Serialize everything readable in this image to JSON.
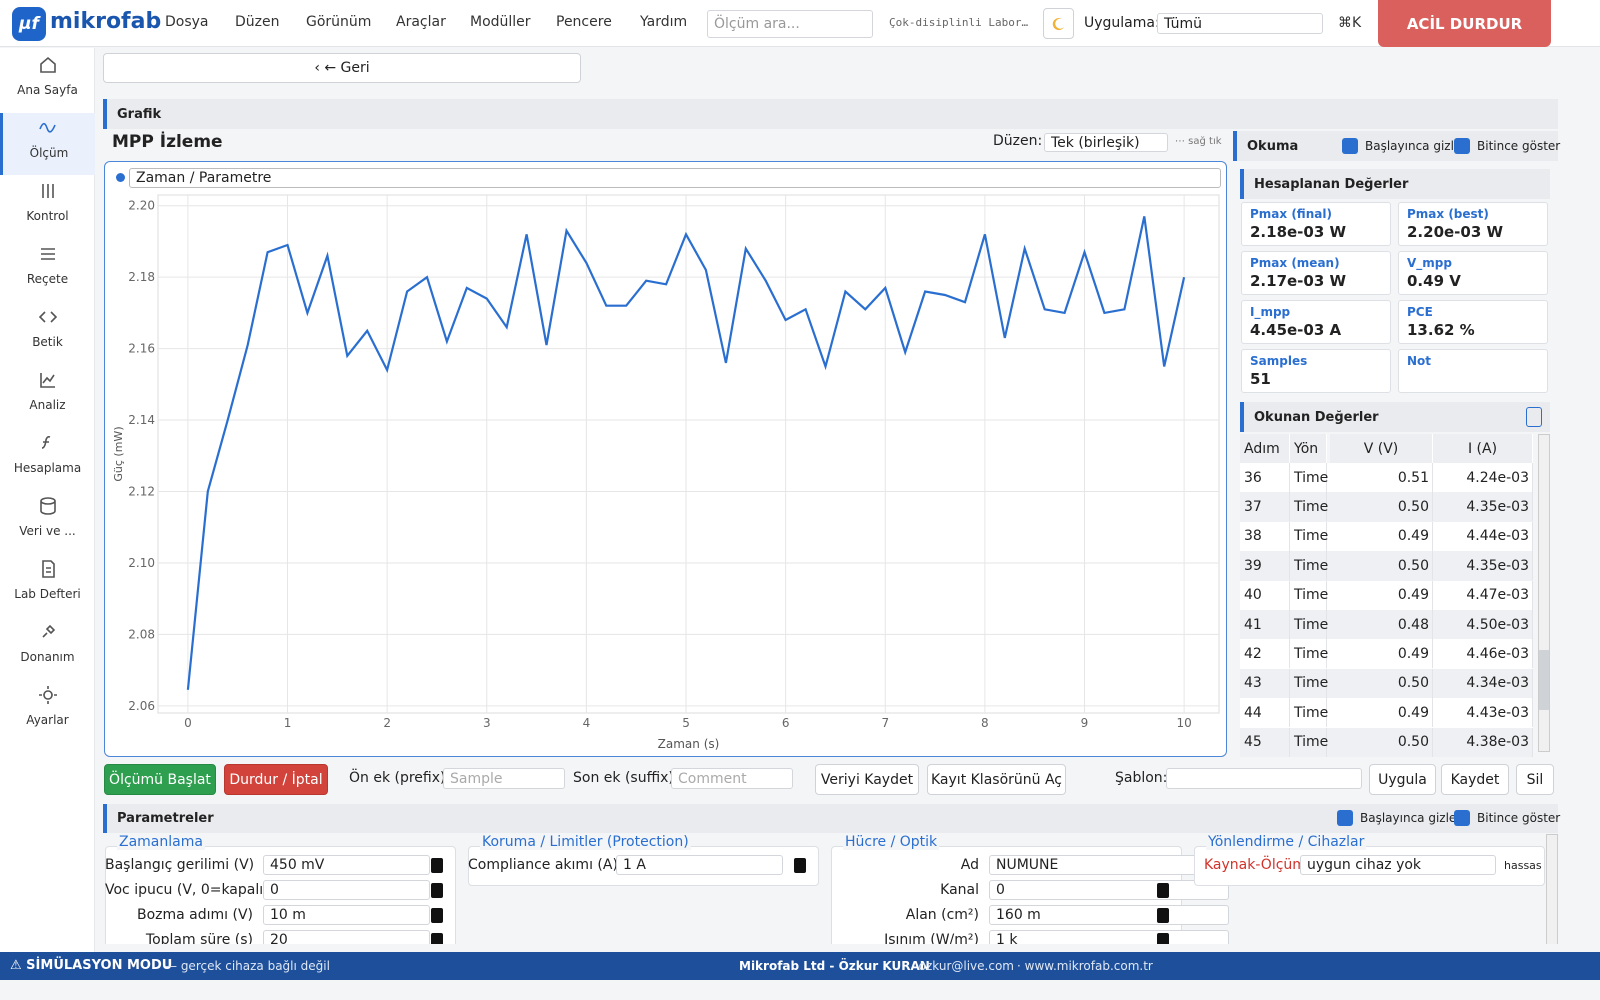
{
  "header": {
    "logo_badge": "µf",
    "logo_text": "mikrofab",
    "menu": [
      "Dosya",
      "Düzen",
      "Görünüm",
      "Araçlar",
      "Modüller",
      "Pencere",
      "Yardım"
    ],
    "search_placeholder": "Ölçüm ara...",
    "lab_name": "Çok-disiplinli Labor…",
    "app_label": "Uygulama:",
    "app_value": "Tümü",
    "shortcut": "⌘K",
    "emergency": "ACİL DURDUR"
  },
  "sidebar": {
    "items": [
      "Ana Sayfa",
      "Ölçüm",
      "Kontrol",
      "Reçete",
      "Betik",
      "Analiz",
      "Hesaplama",
      "Veri ve ...",
      "Lab Defteri",
      "Donanım",
      "Ayarlar"
    ],
    "active": 1
  },
  "back_button": "‹ ← Geri",
  "graph_section": "Grafik",
  "chart_data": {
    "type": "line",
    "title": "MPP İzleme",
    "layout_label": "Düzen:",
    "layout_value": "Tek (birleşik)",
    "hint": "⋯ sağ tık",
    "series_selector": "Zaman / Parametre",
    "x_label": "Zaman (s)",
    "y_label": "Güç (mW)",
    "x": [
      0,
      0.2,
      0.4,
      0.6,
      0.8,
      1.0,
      1.2,
      1.4,
      1.6,
      1.8,
      2.0,
      2.2,
      2.4,
      2.6,
      2.8,
      3.0,
      3.2,
      3.4,
      3.6,
      3.8,
      4.0,
      4.2,
      4.4,
      4.6,
      4.8,
      5.0,
      5.2,
      5.4,
      5.6,
      5.8,
      6.0,
      6.2,
      6.4,
      6.6,
      6.8,
      7.0,
      7.2,
      7.4,
      7.6,
      7.8,
      8.0,
      8.2,
      8.4,
      8.6,
      8.8,
      9.0,
      9.2,
      9.4,
      9.6,
      9.8,
      10.0
    ],
    "series": [
      {
        "color": "#2a6fd0",
        "values": [
          2.0645,
          2.12,
          2.14,
          2.161,
          2.187,
          2.189,
          2.17,
          2.186,
          2.158,
          2.165,
          2.154,
          2.176,
          2.18,
          2.162,
          2.177,
          2.174,
          2.166,
          2.192,
          2.161,
          2.193,
          2.184,
          2.172,
          2.172,
          2.179,
          2.178,
          2.192,
          2.182,
          2.156,
          2.188,
          2.179,
          2.168,
          2.171,
          2.155,
          2.176,
          2.171,
          2.177,
          2.159,
          2.176,
          2.175,
          2.173,
          2.192,
          2.163,
          2.188,
          2.171,
          2.17,
          2.187,
          2.17,
          2.171,
          2.197,
          2.155,
          2.18
        ]
      }
    ],
    "xlim": [
      -0.3,
      10.35
    ],
    "ylim": [
      2.058,
      2.203
    ],
    "xticks": [
      0,
      1,
      2,
      3,
      4,
      5,
      6,
      7,
      8,
      9,
      10
    ],
    "yticks": [
      {
        "value": 2.06,
        "label": "2.06"
      },
      {
        "value": 2.08,
        "label": "2.08"
      },
      {
        "value": 2.1,
        "label": "2.10"
      },
      {
        "value": 2.12,
        "label": "2.12"
      },
      {
        "value": 2.14,
        "label": "2.14"
      },
      {
        "value": 2.16,
        "label": "2.16"
      },
      {
        "value": 2.18,
        "label": "2.18"
      },
      {
        "value": 2.2,
        "label": "2.20"
      }
    ],
    "grid": true
  },
  "reading": {
    "title": "Okuma",
    "checks": [
      "Başlayınca gizle",
      "Bitince göster"
    ],
    "computed_title": "Hesaplanan Değerler",
    "cards": [
      {
        "label": "Pmax (final)",
        "value": "2.18e-03 W"
      },
      {
        "label": "Pmax (best)",
        "value": "2.20e-03 W"
      },
      {
        "label": "Pmax (mean)",
        "value": "2.17e-03 W"
      },
      {
        "label": "V_mpp",
        "value": "0.49 V"
      },
      {
        "label": "I_mpp",
        "value": "4.45e-03 A"
      },
      {
        "label": "PCE",
        "value": "13.62 %"
      },
      {
        "label": "Samples",
        "value": "51"
      },
      {
        "label": "Not"
      }
    ],
    "table_title": "Okunan Değerler",
    "table": {
      "columns": [
        "Adım",
        "Yön",
        "V (V)",
        "I (A)"
      ],
      "rows": [
        [
          "36",
          "Time",
          "0.51",
          "4.24e-03"
        ],
        [
          "37",
          "Time",
          "0.50",
          "4.35e-03"
        ],
        [
          "38",
          "Time",
          "0.49",
          "4.44e-03"
        ],
        [
          "39",
          "Time",
          "0.50",
          "4.35e-03"
        ],
        [
          "40",
          "Time",
          "0.49",
          "4.47e-03"
        ],
        [
          "41",
          "Time",
          "0.48",
          "4.50e-03"
        ],
        [
          "42",
          "Time",
          "0.49",
          "4.46e-03"
        ],
        [
          "43",
          "Time",
          "0.50",
          "4.34e-03"
        ],
        [
          "44",
          "Time",
          "0.49",
          "4.43e-03"
        ],
        [
          "45",
          "Time",
          "0.50",
          "4.38e-03"
        ]
      ]
    }
  },
  "actions": {
    "start": "Ölçümü Başlat",
    "stop": "Durdur / İptal",
    "prefix_label": "Ön ek (prefix)",
    "prefix_placeholder": "Sample",
    "suffix_label": "Son ek (suffix)",
    "suffix_placeholder": "Comment",
    "save_data": "Veriyi Kaydet",
    "open_folder": "Kayıt Klasörünü Aç",
    "template_label": "Şablon:",
    "apply": "Uygula",
    "save": "Kaydet",
    "delete": "Sil"
  },
  "parameters": {
    "title": "Parametreler",
    "checks": [
      "Başlayınca gizle",
      "Bitince göster"
    ],
    "groups": [
      {
        "title": "Zamanlama",
        "fields": [
          {
            "label": "Başlangıç gerilimi (V)",
            "value": "450 mV"
          },
          {
            "label": "Voc ipucu (V, 0=kapalı)",
            "value": "0"
          },
          {
            "label": "Bozma adımı (V)",
            "value": "10 m"
          },
          {
            "label": "Toplam süre (s)",
            "value": "20"
          }
        ]
      },
      {
        "title": "Koruma / Limitler (Protection)",
        "fields": [
          {
            "label": "Compliance akımı (A)",
            "value": "1 A"
          }
        ]
      },
      {
        "title": "Hücre / Optik",
        "fields": [
          {
            "label": "Ad",
            "value": "NUMUNE"
          },
          {
            "label": "Kanal",
            "value": "0"
          },
          {
            "label": "Alan (cm²)",
            "value": "160 m"
          },
          {
            "label": "Işınım (W/m²)",
            "value": "1 k"
          }
        ]
      },
      {
        "title": "Yönlendirme / Cihazlar",
        "fields": [
          {
            "label": "Kaynak-Ölçüm",
            "value": "uygun cihaz yok",
            "extra": "hassas"
          }
        ]
      }
    ]
  },
  "footer": {
    "mode": "⚠ SİMÜLASYON MODU",
    "mode_note": "— gerçek cihaza bağlı değil",
    "company": "Mikrofab Ltd - Özkur KURAN",
    "email": "· ozkur@live.com",
    "site": "· www.mikrofab.com.tr"
  }
}
